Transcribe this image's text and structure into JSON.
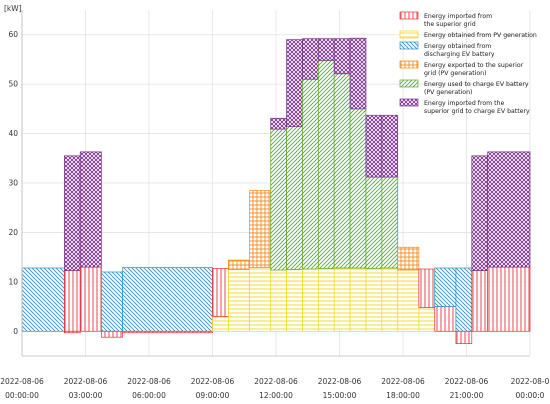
{
  "chart_data": {
    "type": "bar",
    "stacked": true,
    "ylabel": "[kW]",
    "ylim": [
      -5,
      65
    ],
    "yticks": [
      0,
      10,
      20,
      30,
      40,
      50,
      60
    ],
    "xlim": [
      0,
      24
    ],
    "xticks": [
      {
        "x": 0,
        "line1": "2022-08-06",
        "line2": "00:00:00"
      },
      {
        "x": 3,
        "line1": "2022-08-06",
        "line2": "03:00:00"
      },
      {
        "x": 6,
        "line1": "2022-08-06",
        "line2": "06:00:00"
      },
      {
        "x": 9,
        "line1": "2022-08-06",
        "line2": "09:00:00"
      },
      {
        "x": 12,
        "line1": "2022-08-06",
        "line2": "12:00:00"
      },
      {
        "x": 15,
        "line1": "2022-08-06",
        "line2": "15:00:00"
      },
      {
        "x": 18,
        "line1": "2022-08-06",
        "line2": "18:00:00"
      },
      {
        "x": 21,
        "line1": "2022-08-06",
        "line2": "21:00:00"
      },
      {
        "x": 24,
        "line1": "2022-08-0",
        "line2": "00:00:0"
      }
    ],
    "grid": true,
    "legend_position": "top-right",
    "series": [
      {
        "key": "grid",
        "name": "Energy imported from the superior grid",
        "legend_lines": [
          "Energy imported from",
          "the superior grid"
        ],
        "color": "#e8323c",
        "pattern": "vertical"
      },
      {
        "key": "pv",
        "name": "Energy obtained from PV generation",
        "legend_lines": [
          "Energy obtained from PV generation"
        ],
        "color": "#f0d81e",
        "pattern": "horizontal"
      },
      {
        "key": "ev_dis",
        "name": "Energy obtained from discharging EV battery",
        "legend_lines": [
          "Energy obtained from",
          "discharging EV battery"
        ],
        "color": "#2f8fc8",
        "pattern": "diag-back"
      },
      {
        "key": "export",
        "name": "Energy exported to the superior grid (PV generation)",
        "legend_lines": [
          "Energy exported to the superior",
          "grid (PV generation)"
        ],
        "color": "#f08c1e",
        "pattern": "grid"
      },
      {
        "key": "ev_pv",
        "name": "Energy used to charge EV battery (PV generation)",
        "legend_lines": [
          "Energy used to charge EV battery",
          "(PV generation)"
        ],
        "color": "#5aa832",
        "pattern": "diag-fwd"
      },
      {
        "key": "ev_grid",
        "name": "Energy imported from the superior grid to charge EV battery",
        "legend_lines": [
          "Energy imported from the",
          "superior grid to charge EV battery"
        ],
        "color": "#7a2f8c",
        "pattern": "crosshatch"
      }
    ],
    "intervals": [
      {
        "start": 0,
        "end": 2,
        "neg": [],
        "pos": [
          [
            "ev_dis",
            12.8
          ]
        ]
      },
      {
        "start": 2,
        "end": 2.75,
        "neg": [
          [
            "grid",
            0.3
          ]
        ],
        "pos": [
          [
            "grid",
            12.3
          ],
          [
            "ev_grid",
            23.2
          ]
        ]
      },
      {
        "start": 2.75,
        "end": 3.75,
        "neg": [],
        "pos": [
          [
            "grid",
            13.0
          ],
          [
            "ev_grid",
            23.3
          ]
        ]
      },
      {
        "start": 3.75,
        "end": 4.75,
        "neg": [
          [
            "grid",
            1.2
          ]
        ],
        "pos": [
          [
            "ev_dis",
            12.0
          ]
        ]
      },
      {
        "start": 4.75,
        "end": 9,
        "neg": [
          [
            "grid",
            0.3
          ]
        ],
        "pos": [
          [
            "ev_dis",
            12.9
          ]
        ]
      },
      {
        "start": 9,
        "end": 9.75,
        "neg": [],
        "pos": [
          [
            "pv",
            3.0
          ],
          [
            "grid",
            9.7
          ]
        ]
      },
      {
        "start": 9.75,
        "end": 10.75,
        "neg": [],
        "pos": [
          [
            "pv",
            12.5
          ],
          [
            "export",
            1.9
          ]
        ]
      },
      {
        "start": 10.75,
        "end": 11.75,
        "neg": [],
        "pos": [
          [
            "pv",
            12.9
          ],
          [
            "export",
            15.6
          ]
        ]
      },
      {
        "start": 11.75,
        "end": 12.5,
        "neg": [],
        "pos": [
          [
            "pv",
            12.4
          ],
          [
            "ev_pv",
            28.5
          ],
          [
            "ev_grid",
            2.2
          ]
        ]
      },
      {
        "start": 12.5,
        "end": 13.25,
        "neg": [],
        "pos": [
          [
            "pv",
            12.5
          ],
          [
            "ev_pv",
            28.9
          ],
          [
            "ev_grid",
            17.6
          ]
        ]
      },
      {
        "start": 13.25,
        "end": 14.0,
        "neg": [],
        "pos": [
          [
            "pv",
            12.6
          ],
          [
            "ev_pv",
            38.4
          ],
          [
            "ev_grid",
            8.2
          ]
        ]
      },
      {
        "start": 14.0,
        "end": 14.75,
        "neg": [],
        "pos": [
          [
            "pv",
            12.7
          ],
          [
            "ev_pv",
            42.1
          ],
          [
            "ev_grid",
            4.4
          ]
        ]
      },
      {
        "start": 14.75,
        "end": 15.5,
        "neg": [],
        "pos": [
          [
            "pv",
            12.8
          ],
          [
            "ev_pv",
            39.3
          ],
          [
            "ev_grid",
            7.1
          ]
        ]
      },
      {
        "start": 15.5,
        "end": 16.25,
        "neg": [],
        "pos": [
          [
            "pv",
            12.8
          ],
          [
            "ev_pv",
            32.2
          ],
          [
            "ev_grid",
            14.3
          ]
        ]
      },
      {
        "start": 16.25,
        "end": 17.0,
        "neg": [],
        "pos": [
          [
            "pv",
            12.7
          ],
          [
            "ev_pv",
            18.5
          ],
          [
            "ev_grid",
            12.5
          ]
        ]
      },
      {
        "start": 17.0,
        "end": 17.75,
        "neg": [],
        "pos": [
          [
            "pv",
            12.8
          ],
          [
            "ev_pv",
            18.4
          ],
          [
            "ev_grid",
            12.5
          ]
        ]
      },
      {
        "start": 17.75,
        "end": 18.75,
        "neg": [],
        "pos": [
          [
            "pv",
            12.4
          ],
          [
            "export",
            4.6
          ]
        ]
      },
      {
        "start": 18.75,
        "end": 19.5,
        "neg": [],
        "pos": [
          [
            "pv",
            4.8
          ],
          [
            "grid",
            7.8
          ]
        ]
      },
      {
        "start": 19.5,
        "end": 20.5,
        "neg": [],
        "pos": [
          [
            "grid",
            5.0
          ],
          [
            "ev_dis",
            7.8
          ]
        ]
      },
      {
        "start": 20.5,
        "end": 21.25,
        "neg": [
          [
            "grid",
            2.5
          ]
        ],
        "pos": [
          [
            "ev_dis",
            12.8
          ]
        ]
      },
      {
        "start": 21.25,
        "end": 22.0,
        "neg": [],
        "pos": [
          [
            "grid",
            12.3
          ],
          [
            "ev_grid",
            23.2
          ]
        ]
      },
      {
        "start": 22.0,
        "end": 24.0,
        "neg": [],
        "pos": [
          [
            "grid",
            13.0
          ],
          [
            "ev_grid",
            23.3
          ]
        ]
      }
    ]
  }
}
